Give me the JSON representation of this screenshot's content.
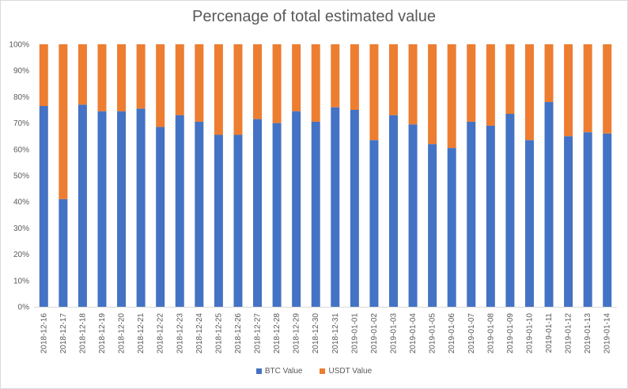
{
  "chart_data": {
    "type": "bar",
    "stacked": true,
    "title": "Percenage of total estimated value",
    "categories": [
      "2018-12-16",
      "2018-12-17",
      "2018-12-18",
      "2018-12-19",
      "2018-12-20",
      "2018-12-21",
      "2018-12-22",
      "2018-12-23",
      "2018-12-24",
      "2018-12-25",
      "2018-12-26",
      "2018-12-27",
      "2018-12-28",
      "2018-12-29",
      "2018-12-30",
      "2018-12-31",
      "2019-01-01",
      "2019-01-02",
      "2019-01-03",
      "2019-01-04",
      "2019-01-05",
      "2019-01-06",
      "2019-01-07",
      "2019-01-08",
      "2019-01-09",
      "2019-01-10",
      "2019-01-11",
      "2019-01-12",
      "2019-01-13",
      "2019-01-14"
    ],
    "series": [
      {
        "name": "BTC Value",
        "color": "#4472c4",
        "values": [
          76.5,
          41,
          77,
          74.5,
          74.5,
          75.5,
          68.5,
          73,
          70.5,
          65.5,
          65.5,
          71.5,
          70,
          74.5,
          70.5,
          76,
          75,
          63.5,
          73,
          69.5,
          62,
          60.5,
          70.5,
          69,
          73.5,
          63.5,
          78,
          65,
          66.5,
          66
        ]
      },
      {
        "name": "USDT Value",
        "color": "#ed7d31",
        "values": [
          23.5,
          59,
          23,
          25.5,
          25.5,
          24.5,
          31.5,
          27,
          29.5,
          34.5,
          34.5,
          28.5,
          30,
          25.5,
          29.5,
          24,
          25,
          36.5,
          27,
          30.5,
          38,
          39.5,
          29.5,
          31,
          26.5,
          36.5,
          22,
          35,
          33.5,
          34
        ]
      }
    ],
    "yticks": [
      "0%",
      "10%",
      "20%",
      "30%",
      "40%",
      "50%",
      "60%",
      "70%",
      "80%",
      "90%",
      "100%"
    ],
    "ylim": [
      0,
      100
    ],
    "grid": false,
    "legend": "bottom"
  }
}
